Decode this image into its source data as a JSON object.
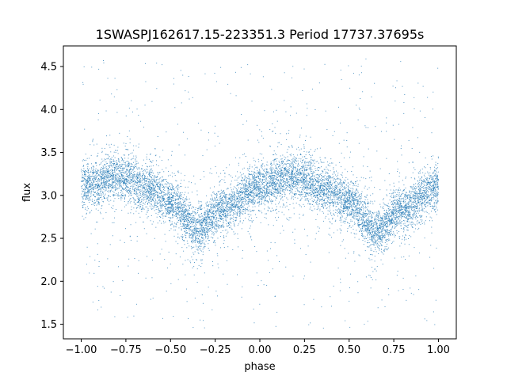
{
  "chart_data": {
    "type": "scatter",
    "title": "1SWASPJ162617.15-223351.3 Period 17737.37695s",
    "xlabel": "phase",
    "ylabel": "flux",
    "xlim": [
      -1.1,
      1.1
    ],
    "ylim": [
      1.33,
      4.74
    ],
    "x_ticks": [
      -1.0,
      -0.75,
      -0.5,
      -0.25,
      0.0,
      0.25,
      0.5,
      0.75,
      1.0
    ],
    "x_tick_labels": [
      "−1.00",
      "−0.75",
      "−0.50",
      "−0.25",
      "0.00",
      "0.25",
      "0.50",
      "0.75",
      "1.00"
    ],
    "y_ticks": [
      1.5,
      2.0,
      2.5,
      3.0,
      3.5,
      4.0,
      4.5
    ],
    "y_tick_labels": [
      "1.5",
      "2.0",
      "2.5",
      "3.0",
      "3.5",
      "4.0",
      "4.5"
    ],
    "grid": false,
    "point_color": "#1f77b4",
    "series": [
      {
        "phase_range": [
          -1.0,
          1.0
        ],
        "trend_phase": [
          -1.0,
          -0.8,
          -0.6,
          -0.5,
          -0.35,
          -0.2,
          0.0,
          0.2,
          0.4,
          0.5,
          0.65,
          0.8,
          1.0
        ],
        "trend_flux": [
          3.1,
          3.22,
          3.08,
          2.92,
          2.6,
          2.85,
          3.1,
          3.22,
          3.05,
          2.92,
          2.58,
          2.85,
          3.1
        ],
        "scatter_sigma": 0.13,
        "outlier_range": [
          1.45,
          4.6
        ],
        "approx_points": 20000
      }
    ]
  }
}
